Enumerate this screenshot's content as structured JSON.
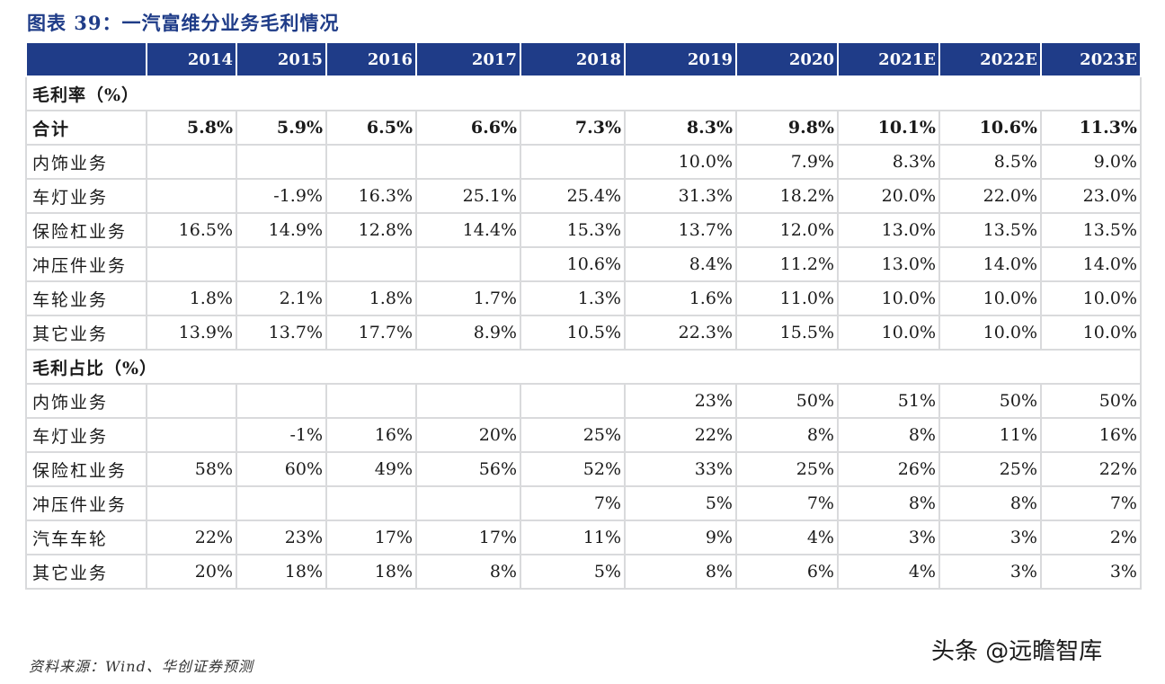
{
  "title": "图表 39：一汽富维分业务毛利情况",
  "header": {
    "corner": "",
    "years": [
      "2014",
      "2015",
      "2016",
      "2017",
      "2018",
      "2019",
      "2020",
      "2021E",
      "2022E",
      "2023E"
    ]
  },
  "sections": [
    {
      "title": "毛利率（%）",
      "rows": [
        {
          "label": "合计",
          "bold": true,
          "values": [
            "5.8%",
            "5.9%",
            "6.5%",
            "6.6%",
            "7.3%",
            "8.3%",
            "9.8%",
            "10.1%",
            "10.6%",
            "11.3%"
          ]
        },
        {
          "label": "内饰业务",
          "values": [
            "",
            "",
            "",
            "",
            "",
            "10.0%",
            "7.9%",
            "8.3%",
            "8.5%",
            "9.0%"
          ]
        },
        {
          "label": "车灯业务",
          "values": [
            "",
            "-1.9%",
            "16.3%",
            "25.1%",
            "25.4%",
            "31.3%",
            "18.2%",
            "20.0%",
            "22.0%",
            "23.0%"
          ]
        },
        {
          "label": "保险杠业务",
          "values": [
            "16.5%",
            "14.9%",
            "12.8%",
            "14.4%",
            "15.3%",
            "13.7%",
            "12.0%",
            "13.0%",
            "13.5%",
            "13.5%"
          ]
        },
        {
          "label": "冲压件业务",
          "values": [
            "",
            "",
            "",
            "",
            "10.6%",
            "8.4%",
            "11.2%",
            "13.0%",
            "14.0%",
            "14.0%"
          ]
        },
        {
          "label": "车轮业务",
          "values": [
            "1.8%",
            "2.1%",
            "1.8%",
            "1.7%",
            "1.3%",
            "1.6%",
            "11.0%",
            "10.0%",
            "10.0%",
            "10.0%"
          ]
        },
        {
          "label": "其它业务",
          "values": [
            "13.9%",
            "13.7%",
            "17.7%",
            "8.9%",
            "10.5%",
            "22.3%",
            "15.5%",
            "10.0%",
            "10.0%",
            "10.0%"
          ]
        }
      ]
    },
    {
      "title": "毛利占比（%）",
      "rows": [
        {
          "label": "内饰业务",
          "values": [
            "",
            "",
            "",
            "",
            "",
            "23%",
            "50%",
            "51%",
            "50%",
            "50%"
          ]
        },
        {
          "label": "车灯业务",
          "values": [
            "",
            "-1%",
            "16%",
            "20%",
            "25%",
            "22%",
            "8%",
            "8%",
            "11%",
            "16%"
          ]
        },
        {
          "label": "保险杠业务",
          "values": [
            "58%",
            "60%",
            "49%",
            "56%",
            "52%",
            "33%",
            "25%",
            "26%",
            "25%",
            "22%"
          ]
        },
        {
          "label": "冲压件业务",
          "values": [
            "",
            "",
            "",
            "",
            "7%",
            "5%",
            "7%",
            "8%",
            "8%",
            "7%"
          ]
        },
        {
          "label": "汽车车轮",
          "values": [
            "22%",
            "23%",
            "17%",
            "17%",
            "11%",
            "9%",
            "4%",
            "3%",
            "3%",
            "2%"
          ]
        },
        {
          "label": "其它业务",
          "values": [
            "20%",
            "18%",
            "18%",
            "8%",
            "5%",
            "8%",
            "6%",
            "4%",
            "3%",
            "3%"
          ]
        }
      ]
    }
  ],
  "source": "资料来源：Wind、华创证券预测",
  "watermark": "头条 @远瞻智库",
  "colors": {
    "header_bg": "#1f3c88",
    "title_text": "#1f3c88",
    "grid_line": "#d9dadc"
  }
}
